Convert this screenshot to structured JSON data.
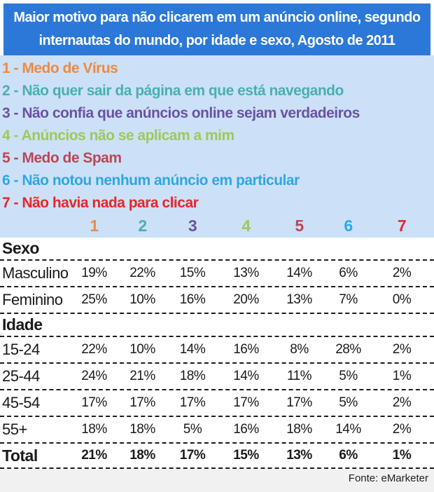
{
  "header": {
    "title_line1": "Maior motivo para não clicarem em um anúncio online, segundo",
    "title_line2": "internautas do mundo, por idade e sexo, Agosto de 2011",
    "bg_color": "#2C78D8"
  },
  "legend": {
    "bg_color": "#CCE1F7",
    "items": [
      {
        "label": "1 - Medo de Vírus",
        "color": "#EE8A3E"
      },
      {
        "label": "2 - Não quer sair da página em que está navegando",
        "color": "#4AAFB0"
      },
      {
        "label": "3 - Não confia que anúncios online sejam verdadeiros",
        "color": "#6B51A3"
      },
      {
        "label": "4 - Anúncios não se aplicam a mim",
        "color": "#9CC95C"
      },
      {
        "label": "5 - Medo de Spam",
        "color": "#BD4557"
      },
      {
        "label": "6 - Não notou nenhum anúncio em particular",
        "color": "#2EA7E6"
      },
      {
        "label": "7 - Não havia nada para clicar",
        "color": "#E8262B"
      }
    ]
  },
  "table": {
    "col_headers": [
      "1",
      "2",
      "3",
      "4",
      "5",
      "6",
      "7"
    ],
    "rows": [
      {
        "type": "group",
        "label": "Sexo"
      },
      {
        "type": "data",
        "label": "Masculino",
        "values": [
          "19%",
          "22%",
          "15%",
          "13%",
          "14%",
          "6%",
          "2%"
        ]
      },
      {
        "type": "data",
        "label": "Feminino",
        "values": [
          "25%",
          "10%",
          "16%",
          "20%",
          "13%",
          "7%",
          "0%"
        ]
      },
      {
        "type": "group",
        "label": "Idade"
      },
      {
        "type": "data",
        "label": "15-24",
        "values": [
          "22%",
          "10%",
          "14%",
          "16%",
          "8%",
          "28%",
          "2%"
        ]
      },
      {
        "type": "data",
        "label": "25-44",
        "values": [
          "24%",
          "21%",
          "18%",
          "14%",
          "11%",
          "5%",
          "1%"
        ]
      },
      {
        "type": "data",
        "label": "45-54",
        "values": [
          "17%",
          "17%",
          "17%",
          "17%",
          "17%",
          "5%",
          "2%"
        ]
      },
      {
        "type": "data",
        "label": "55+",
        "values": [
          "18%",
          "18%",
          "5%",
          "16%",
          "18%",
          "14%",
          "2%"
        ]
      },
      {
        "type": "total",
        "label": "Total",
        "values": [
          "21%",
          "18%",
          "17%",
          "15%",
          "13%",
          "6%",
          "1%"
        ]
      }
    ]
  },
  "footer": {
    "source": "Fonte: eMarketer"
  },
  "chart_data": {
    "type": "table",
    "title": "Maior motivo para não clicarem em um anúncio online, segundo internautas do mundo, por idade e sexo, Agosto de 2011",
    "column_labels": [
      "1",
      "2",
      "3",
      "4",
      "5",
      "6",
      "7"
    ],
    "column_legend": [
      "Medo de Vírus",
      "Não quer sair da página em que está navegando",
      "Não confia que anúncios online sejam verdadeiros",
      "Anúncios não se aplicam a mim",
      "Medo de Spam",
      "Não notou nenhum anúncio em particular",
      "Não havia nada para clicar"
    ],
    "row_groups": [
      {
        "group": "Sexo",
        "rows": [
          {
            "label": "Masculino",
            "values_pct": [
              19,
              22,
              15,
              13,
              14,
              6,
              2
            ]
          },
          {
            "label": "Feminino",
            "values_pct": [
              25,
              10,
              16,
              20,
              13,
              7,
              0
            ]
          }
        ]
      },
      {
        "group": "Idade",
        "rows": [
          {
            "label": "15-24",
            "values_pct": [
              22,
              10,
              14,
              16,
              8,
              28,
              2
            ]
          },
          {
            "label": "25-44",
            "values_pct": [
              24,
              21,
              18,
              14,
              11,
              5,
              1
            ]
          },
          {
            "label": "45-54",
            "values_pct": [
              17,
              17,
              17,
              17,
              17,
              5,
              2
            ]
          },
          {
            "label": "55+",
            "values_pct": [
              18,
              18,
              5,
              16,
              18,
              14,
              2
            ]
          }
        ]
      }
    ],
    "total_row": {
      "label": "Total",
      "values_pct": [
        21,
        18,
        17,
        15,
        13,
        6,
        1
      ]
    },
    "source": "Fonte: eMarketer",
    "unit": "percent"
  }
}
